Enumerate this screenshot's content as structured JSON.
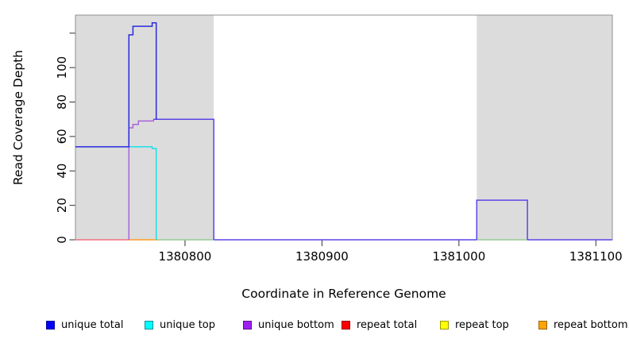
{
  "figure": {
    "background": "#ffffff",
    "band_color": "#dcdcdc",
    "frame_color": "#919191",
    "tick_color": "#303030",
    "label_color": "#000000"
  },
  "axes": {
    "x": {
      "title": "Coordinate in Reference Genome",
      "min": 1380720,
      "max": 1381112,
      "ticks": [
        {
          "value": 1380800,
          "label": "1380800"
        },
        {
          "value": 1380900,
          "label": "1380900"
        },
        {
          "value": 1381000,
          "label": "1381000"
        },
        {
          "value": 1381100,
          "label": "1381100"
        }
      ]
    },
    "y": {
      "title": "Read Coverage Depth",
      "min": 0,
      "max": 130.5,
      "ticks": [
        {
          "value": 0,
          "label": "0"
        },
        {
          "value": 20,
          "label": "20"
        },
        {
          "value": 40,
          "label": "40"
        },
        {
          "value": 60,
          "label": "60"
        },
        {
          "value": 80,
          "label": "80"
        },
        {
          "value": 100,
          "label": "100"
        },
        {
          "value": 120,
          "label": ""
        }
      ]
    }
  },
  "chart_data": {
    "type": "line",
    "title": "",
    "xlabel": "Coordinate in Reference Genome",
    "ylabel": "Read Coverage Depth",
    "xlim": [
      1380720,
      1381112
    ],
    "ylim": [
      0,
      130
    ],
    "grid": false,
    "legend_position": "bottom",
    "shaded_regions": [
      {
        "x0": 1380720,
        "x1": 1380821
      },
      {
        "x0": 1381013,
        "x1": 1381112
      }
    ],
    "series": [
      {
        "name": "unique total",
        "color": "#0000ff",
        "points": [
          [
            1380720,
            54
          ],
          [
            1380759,
            54
          ],
          [
            1380759,
            119
          ],
          [
            1380762,
            119
          ],
          [
            1380762,
            124
          ],
          [
            1380776,
            124
          ],
          [
            1380776,
            126
          ],
          [
            1380779,
            126
          ],
          [
            1380779,
            70
          ],
          [
            1380821,
            70
          ],
          [
            1380821,
            0
          ],
          [
            1381013,
            0
          ],
          [
            1381013,
            23
          ],
          [
            1381050,
            23
          ],
          [
            1381050,
            0
          ],
          [
            1381112,
            0
          ]
        ]
      },
      {
        "name": "unique top",
        "color": "#00ffff",
        "points": [
          [
            1380720,
            54
          ],
          [
            1380776,
            54
          ],
          [
            1380776,
            53
          ],
          [
            1380779,
            53
          ],
          [
            1380779,
            0
          ],
          [
            1381112,
            0
          ]
        ]
      },
      {
        "name": "unique bottom",
        "color": "#a020f0",
        "points": [
          [
            1380720,
            0
          ],
          [
            1380759,
            0
          ],
          [
            1380759,
            65
          ],
          [
            1380762,
            65
          ],
          [
            1380762,
            67
          ],
          [
            1380766,
            67
          ],
          [
            1380766,
            69
          ],
          [
            1380777,
            69
          ],
          [
            1380777,
            70
          ],
          [
            1380821,
            70
          ],
          [
            1380821,
            0
          ],
          [
            1381013,
            0
          ],
          [
            1381013,
            23
          ],
          [
            1381050,
            23
          ],
          [
            1381050,
            0
          ],
          [
            1381112,
            0
          ]
        ]
      },
      {
        "name": "repeat total",
        "color": "#ff0000",
        "points": [
          [
            1380720,
            0
          ],
          [
            1381112,
            0
          ]
        ]
      },
      {
        "name": "repeat top",
        "color": "#ffff00",
        "points": [
          [
            1380720,
            0
          ],
          [
            1381112,
            0
          ]
        ]
      },
      {
        "name": "repeat bottom",
        "color": "#ffa500",
        "points": [
          [
            1380720,
            0
          ],
          [
            1381112,
            0
          ]
        ]
      }
    ],
    "render_lines": [
      {
        "name": "repeat-total-zero",
        "color": "#f2707f",
        "points": [
          [
            1380720,
            0
          ],
          [
            1380759,
            0
          ]
        ]
      },
      {
        "name": "repeat-bottom-zero",
        "color": "#ff9d1e",
        "points": [
          [
            1380759,
            0
          ],
          [
            1380780,
            0
          ]
        ]
      },
      {
        "name": "top-overlap-zero-left",
        "color": "#93cc93",
        "points": [
          [
            1380780,
            0
          ],
          [
            1380821,
            0
          ]
        ]
      },
      {
        "name": "top-overlap-zero-right",
        "color": "#93cc93",
        "points": [
          [
            1381013,
            0
          ],
          [
            1381050,
            0
          ]
        ]
      },
      {
        "name": "unique-zero-mid",
        "color": "#5b45e8",
        "points": [
          [
            1380821,
            0
          ],
          [
            1381013,
            0
          ]
        ]
      },
      {
        "name": "unique-zero-right",
        "color": "#5b45e8",
        "points": [
          [
            1381050,
            0
          ],
          [
            1381112,
            0
          ]
        ]
      },
      {
        "name": "unique-top-line",
        "color": "#18dfe8",
        "points": [
          [
            1380759,
            54
          ],
          [
            1380776,
            54
          ],
          [
            1380776,
            53
          ],
          [
            1380779,
            53
          ],
          [
            1380779,
            0
          ]
        ]
      },
      {
        "name": "unique-bottom-steps",
        "color": "#a863dc",
        "points": [
          [
            1380759,
            0
          ],
          [
            1380759,
            65
          ],
          [
            1380762,
            65
          ],
          [
            1380762,
            67
          ],
          [
            1380766,
            67
          ],
          [
            1380766,
            69
          ],
          [
            1380777,
            69
          ],
          [
            1380777,
            70
          ]
        ]
      },
      {
        "name": "unique-merged-70",
        "color": "#5b45e8",
        "points": [
          [
            1380777,
            70
          ],
          [
            1380821,
            70
          ],
          [
            1380821,
            0
          ]
        ]
      },
      {
        "name": "unique-merged-23",
        "color": "#5b45e8",
        "points": [
          [
            1381013,
            0
          ],
          [
            1381013,
            23
          ],
          [
            1381050,
            23
          ],
          [
            1381050,
            0
          ]
        ]
      },
      {
        "name": "unique-total-line",
        "color": "#2a2ae0",
        "points": [
          [
            1380720,
            54
          ],
          [
            1380759,
            54
          ],
          [
            1380759,
            119
          ],
          [
            1380762,
            119
          ],
          [
            1380762,
            124
          ],
          [
            1380776,
            124
          ],
          [
            1380776,
            126
          ],
          [
            1380779,
            126
          ],
          [
            1380779,
            70
          ]
        ]
      }
    ]
  },
  "legend": {
    "items": [
      {
        "label": "unique total",
        "fill": "#0000ff",
        "border": "#00009a"
      },
      {
        "label": "unique top",
        "fill": "#00ffff",
        "border": "#0b8f9a"
      },
      {
        "label": "unique bottom",
        "fill": "#a020f0",
        "border": "#5c1090"
      },
      {
        "label": "repeat total",
        "fill": "#ff0000",
        "border": "#990000"
      },
      {
        "label": "repeat top",
        "fill": "#ffff00",
        "border": "#9a9a00"
      },
      {
        "label": "repeat bottom",
        "fill": "#ffa500",
        "border": "#9a6400"
      }
    ]
  }
}
